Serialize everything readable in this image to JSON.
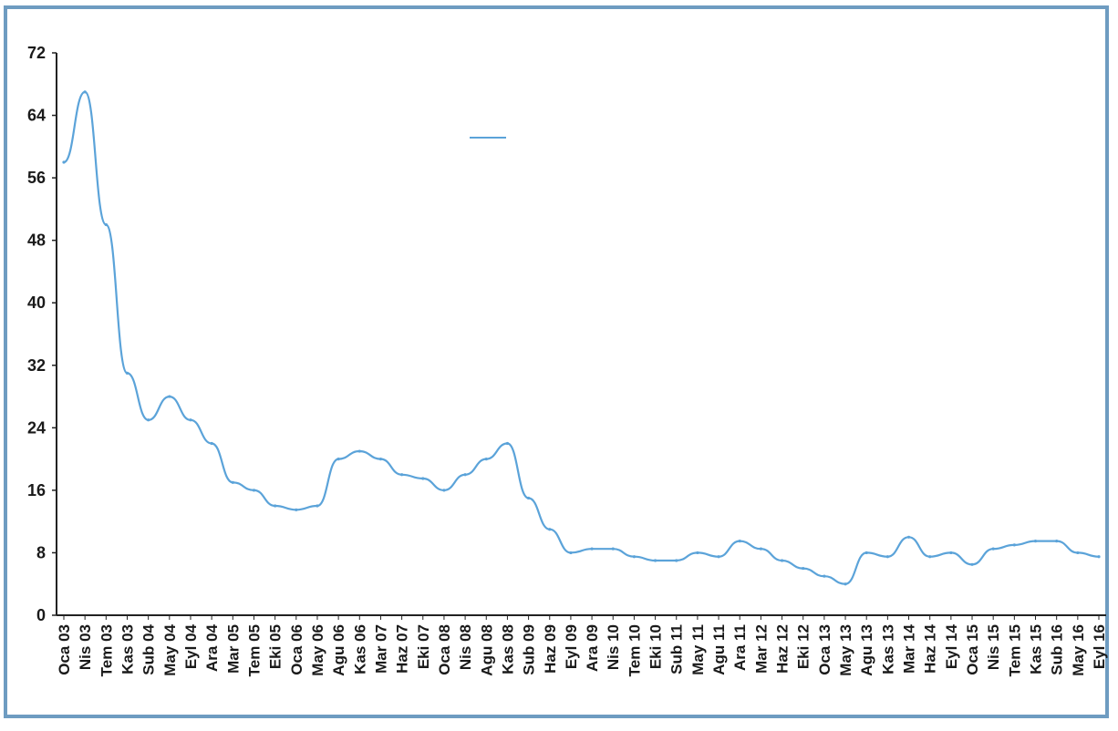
{
  "chart_data": {
    "type": "line",
    "title": "",
    "xlabel": "",
    "ylabel": "",
    "ylim": [
      0,
      72
    ],
    "y_ticks": [
      0,
      8,
      16,
      24,
      32,
      40,
      48,
      56,
      64,
      72
    ],
    "grid": false,
    "legend": "top-center",
    "x_ticks": [
      "Oca 03",
      "Nis 03",
      "Tem 03",
      "Kas 03",
      "Sub 04",
      "May 04",
      "Eyl 04",
      "Ara 04",
      "Mar 05",
      "Tem 05",
      "Eki 05",
      "Oca 06",
      "May 06",
      "Agu 06",
      "Kas 06",
      "Mar 07",
      "Haz 07",
      "Eki 07",
      "Oca 08",
      "Nis 08",
      "Agu 08",
      "Kas 08",
      "Sub 09",
      "Haz 09",
      "Eyl 09",
      "Ara 09",
      "Nis 10",
      "Tem 10",
      "Eki 10",
      "Sub 11",
      "May 11",
      "Agu 11",
      "Ara 11",
      "Mar 12",
      "Haz 12",
      "Eki 12",
      "Oca 13",
      "May 13",
      "Agu 13",
      "Kas 13",
      "Mar 14",
      "Haz 14",
      "Eyl 14",
      "Oca 15",
      "Nis 15",
      "Tem 15",
      "Kas 15",
      "Sub 16",
      "May 16",
      "Eyl 16"
    ],
    "series": [
      {
        "name": "",
        "color": "#5ba3d9",
        "x": [
          "Oca 03",
          "Nis 03",
          "Tem 03",
          "Kas 03",
          "Sub 04",
          "May 04",
          "Eyl 04",
          "Ara 04",
          "Mar 05",
          "Tem 05",
          "Eki 05",
          "Oca 06",
          "May 06",
          "Agu 06",
          "Kas 06",
          "Mar 07",
          "Haz 07",
          "Eki 07",
          "Oca 08",
          "Nis 08",
          "Agu 08",
          "Kas 08",
          "Sub 09",
          "Haz 09",
          "Eyl 09",
          "Ara 09",
          "Nis 10",
          "Tem 10",
          "Eki 10",
          "Sub 11",
          "May 11",
          "Agu 11",
          "Ara 11",
          "Mar 12",
          "Haz 12",
          "Eki 12",
          "Oca 13",
          "May 13",
          "Agu 13",
          "Kas 13",
          "Mar 14",
          "Haz 14",
          "Eyl 14",
          "Oca 15",
          "Nis 15",
          "Tem 15",
          "Kas 15",
          "Sub 16",
          "May 16",
          "Eyl 16"
        ],
        "values": [
          58,
          67,
          50,
          31,
          25,
          28,
          25,
          22,
          17,
          16,
          14,
          13.5,
          14,
          20,
          21,
          20,
          18,
          17.5,
          16,
          18,
          20,
          22,
          15,
          11,
          8,
          8.5,
          8.5,
          7.5,
          7,
          7,
          8,
          7.5,
          9.5,
          8.5,
          7,
          6,
          5,
          4,
          8,
          7.5,
          10,
          7.5,
          8,
          6.5,
          8.5,
          9,
          9.5,
          9.5,
          8,
          7.5
        ]
      }
    ]
  }
}
